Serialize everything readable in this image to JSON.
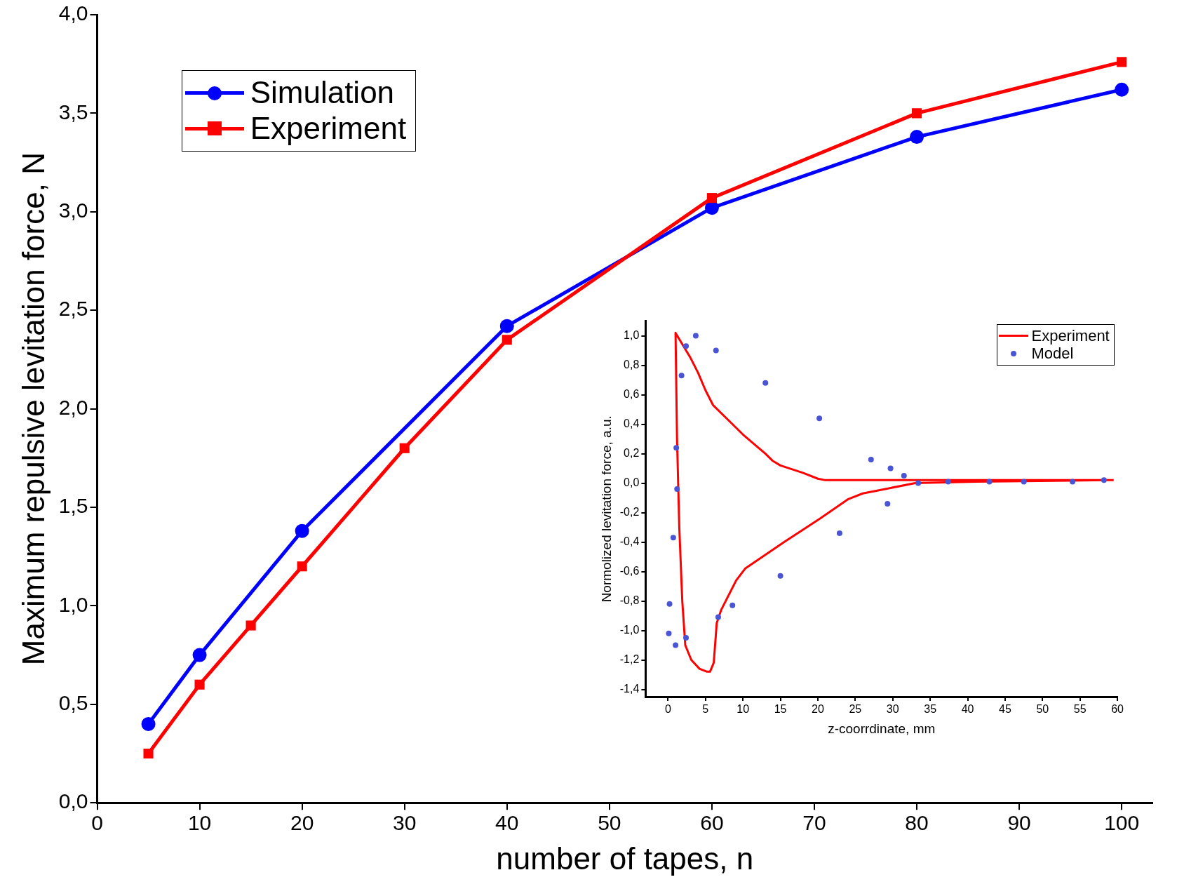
{
  "chart_data": [
    {
      "type": "line",
      "xlabel": "number of tapes, n",
      "ylabel": "Maximum repulsive levitation force, N",
      "xlim": [
        0,
        103
      ],
      "xticks": [
        0,
        10,
        20,
        30,
        40,
        50,
        60,
        70,
        80,
        90,
        100
      ],
      "ylim": [
        0,
        4
      ],
      "yticks": [
        {
          "value": 0,
          "label": "0,0"
        },
        {
          "value": 0.5,
          "label": "0,5"
        },
        {
          "value": 1,
          "label": "1,0"
        },
        {
          "value": 1.5,
          "label": "1,5"
        },
        {
          "value": 2,
          "label": "2,0"
        },
        {
          "value": 2.5,
          "label": "2,5"
        },
        {
          "value": 3,
          "label": "3,0"
        },
        {
          "value": 3.5,
          "label": "3,5"
        },
        {
          "value": 4,
          "label": "4,0"
        }
      ],
      "grid": false,
      "legend": "top left",
      "line_style": "solid",
      "series": [
        {
          "name": "Simulation",
          "color": "#0000ff",
          "marker": "circle",
          "x": [
            5,
            10,
            20,
            40,
            60,
            80,
            100
          ],
          "values": [
            0.4,
            0.75,
            1.38,
            2.42,
            3.02,
            3.38,
            3.62
          ]
        },
        {
          "name": "Experiment",
          "color": "#ff0000",
          "marker": "square",
          "x": [
            5,
            10,
            15,
            20,
            30,
            40,
            60,
            80,
            100
          ],
          "values": [
            0.25,
            0.6,
            0.9,
            1.2,
            1.8,
            2.35,
            3.07,
            3.5,
            3.76
          ]
        }
      ]
    },
    {
      "type": "line",
      "xlabel": "z-coorrdinate, mm",
      "ylabel": "Normolized levitation force, a.u.",
      "xlim": [
        -3,
        60
      ],
      "xticks": [
        0,
        5,
        10,
        15,
        20,
        25,
        30,
        35,
        40,
        45,
        50,
        55,
        60
      ],
      "ylim": [
        -1.45,
        1.1
      ],
      "yticks": [
        {
          "value": -1.4,
          "label": "-1,4"
        },
        {
          "value": -1.2,
          "label": "-1,2"
        },
        {
          "value": -1,
          "label": "-1,0"
        },
        {
          "value": -0.8,
          "label": "-0,8"
        },
        {
          "value": -0.6,
          "label": "-0,6"
        },
        {
          "value": -0.4,
          "label": "-0,4"
        },
        {
          "value": -0.2,
          "label": "-0,2"
        },
        {
          "value": 0,
          "label": "0,0"
        },
        {
          "value": 0.2,
          "label": "0,2"
        },
        {
          "value": 0.4,
          "label": "0,4"
        },
        {
          "value": 0.6,
          "label": "0,6"
        },
        {
          "value": 0.8,
          "label": "0,8"
        },
        {
          "value": 1,
          "label": "1,0"
        }
      ],
      "grid": false,
      "legend": "top right",
      "series": [
        {
          "name": "Experiment",
          "type": "line",
          "color": "#ff0000",
          "marker": "none",
          "line_style": "solid",
          "x": [
            59.5,
            40,
            30,
            21,
            20,
            18,
            15,
            14,
            13,
            10,
            8,
            6,
            5,
            4,
            3,
            1,
            1.2,
            1.5,
            1.9,
            2.3,
            3.1,
            4.2,
            5.2,
            5.6,
            6.1,
            6.5,
            7.1,
            8.1,
            9.1,
            10.3,
            15.5,
            20.3,
            24,
            26,
            29,
            33,
            41,
            58.5
          ],
          "values": [
            0.02,
            0.02,
            0.02,
            0.02,
            0.03,
            0.07,
            0.12,
            0.15,
            0.2,
            0.33,
            0.43,
            0.53,
            0.63,
            0.75,
            0.85,
            1.02,
            0.3,
            -0.3,
            -0.8,
            -1.1,
            -1.2,
            -1.26,
            -1.28,
            -1.28,
            -1.22,
            -0.95,
            -0.86,
            -0.76,
            -0.66,
            -0.58,
            -0.4,
            -0.24,
            -0.11,
            -0.07,
            -0.04,
            0.0,
            0.01,
            0.02
          ]
        },
        {
          "name": "Model",
          "type": "scatter",
          "color": "#4a55d6",
          "marker": "circle",
          "x": [
            0.2,
            0.1,
            1,
            2.4,
            0.7,
            1.2,
            1.1,
            1.8,
            2.4,
            3.7,
            6.4,
            13,
            20.2,
            27.1,
            29.7,
            31.5,
            33.4,
            37.4,
            42.9,
            47.5,
            54,
            58.2,
            6.7,
            8.6,
            15,
            22.9,
            29.3
          ],
          "values": [
            -0.82,
            -1.02,
            -1.1,
            -1.05,
            -0.37,
            -0.04,
            0.24,
            0.73,
            0.93,
            1.0,
            0.9,
            0.68,
            0.44,
            0.16,
            0.1,
            0.05,
            0.0,
            0.01,
            0.01,
            0.01,
            0.01,
            0.02,
            -0.91,
            -0.83,
            -0.63,
            -0.34,
            -0.14
          ]
        }
      ]
    }
  ]
}
